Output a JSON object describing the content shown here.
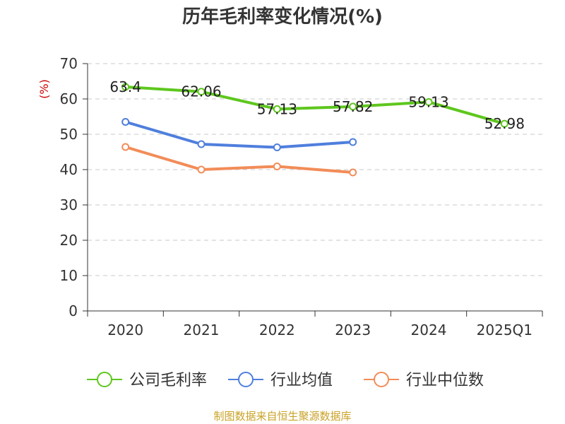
{
  "chart_data": {
    "type": "line",
    "title": "历年毛利率变化情况(%)",
    "ylabel": "(%)",
    "xlabel": "",
    "categories": [
      "2020",
      "2021",
      "2022",
      "2023",
      "2024",
      "2025Q1"
    ],
    "ylim": [
      0,
      70
    ],
    "yticks": [
      0,
      10,
      20,
      30,
      40,
      50,
      60,
      70
    ],
    "grid": true,
    "legend_position": "bottom",
    "series": [
      {
        "name": "公司毛利率",
        "color": "#5ec71e",
        "values": [
          63.4,
          62.06,
          57.13,
          57.82,
          59.13,
          52.98
        ],
        "labels": [
          "63.4",
          "62.06",
          "57.13",
          "57.82",
          "59.13",
          "52.98"
        ]
      },
      {
        "name": "行业均值",
        "color": "#4f7fdd",
        "values": [
          53.5,
          47.2,
          46.3,
          47.8,
          null,
          null
        ]
      },
      {
        "name": "行业中位数",
        "color": "#f28c58",
        "values": [
          46.4,
          40.0,
          40.9,
          39.2,
          null,
          null
        ]
      }
    ]
  },
  "source": "制图数据来自恒生聚源数据库"
}
